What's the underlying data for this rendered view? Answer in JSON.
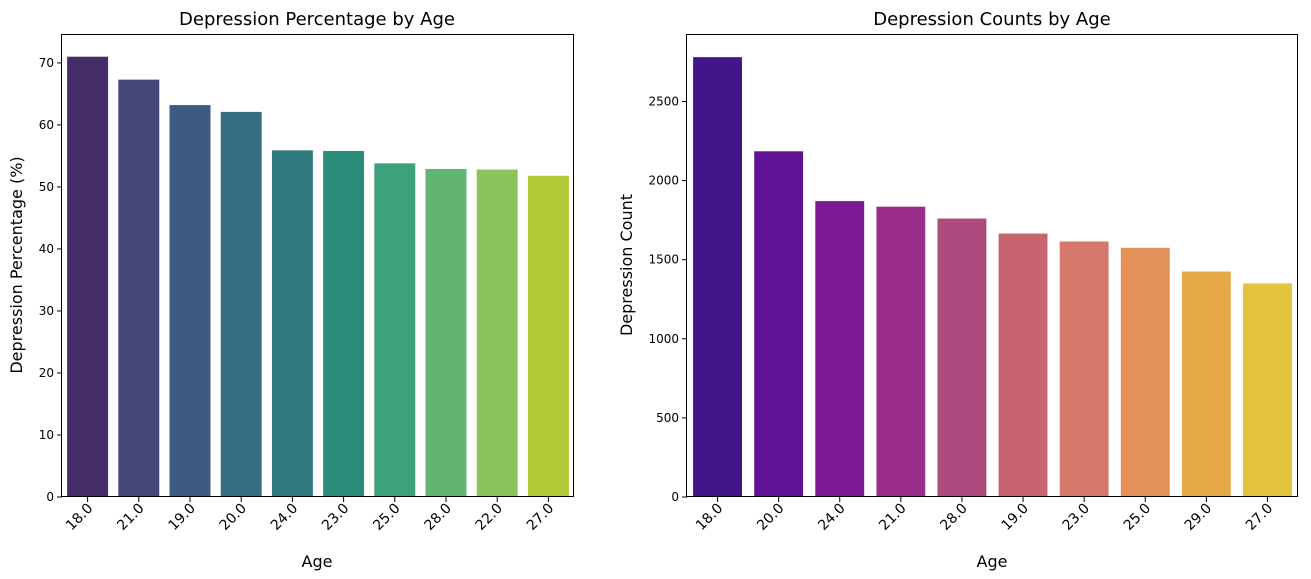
{
  "chart_data": [
    {
      "type": "bar",
      "title": "Depression Percentage by Age",
      "xlabel": "Age",
      "ylabel": "Depression Percentage (%)",
      "categories": [
        "18.0",
        "21.0",
        "19.0",
        "20.0",
        "24.0",
        "23.0",
        "25.0",
        "28.0",
        "22.0",
        "27.0"
      ],
      "values": [
        71.0,
        67.3,
        63.2,
        62.1,
        55.9,
        55.8,
        53.8,
        52.9,
        52.8,
        51.8
      ],
      "ylim": [
        0,
        74.5
      ],
      "yticks": [
        0,
        10,
        20,
        30,
        40,
        50,
        60,
        70
      ],
      "grid": false,
      "colors": [
        "#472c6a",
        "#47477b",
        "#3e5a84",
        "#366d80",
        "#2e7a7f",
        "#2a8b7b",
        "#3da17b",
        "#61b56f",
        "#8ac55b",
        "#b3c935"
      ]
    },
    {
      "type": "bar",
      "title": "Depression Counts by Age",
      "xlabel": "Age",
      "ylabel": "Depression Count",
      "categories": [
        "18.0",
        "20.0",
        "24.0",
        "21.0",
        "28.0",
        "19.0",
        "23.0",
        "25.0",
        "29.0",
        "27.0"
      ],
      "values": [
        2780,
        2185,
        1870,
        1835,
        1760,
        1665,
        1615,
        1575,
        1425,
        1350
      ],
      "ylim": [
        0,
        2920
      ],
      "yticks": [
        0,
        500,
        1000,
        1500,
        2000,
        2500
      ],
      "grid": false,
      "colors": [
        "#41168a",
        "#5f1293",
        "#7b1a94",
        "#9a2c89",
        "#ae4b7e",
        "#c86370",
        "#d6796c",
        "#e39158",
        "#e6a947",
        "#e3c23c"
      ]
    }
  ]
}
